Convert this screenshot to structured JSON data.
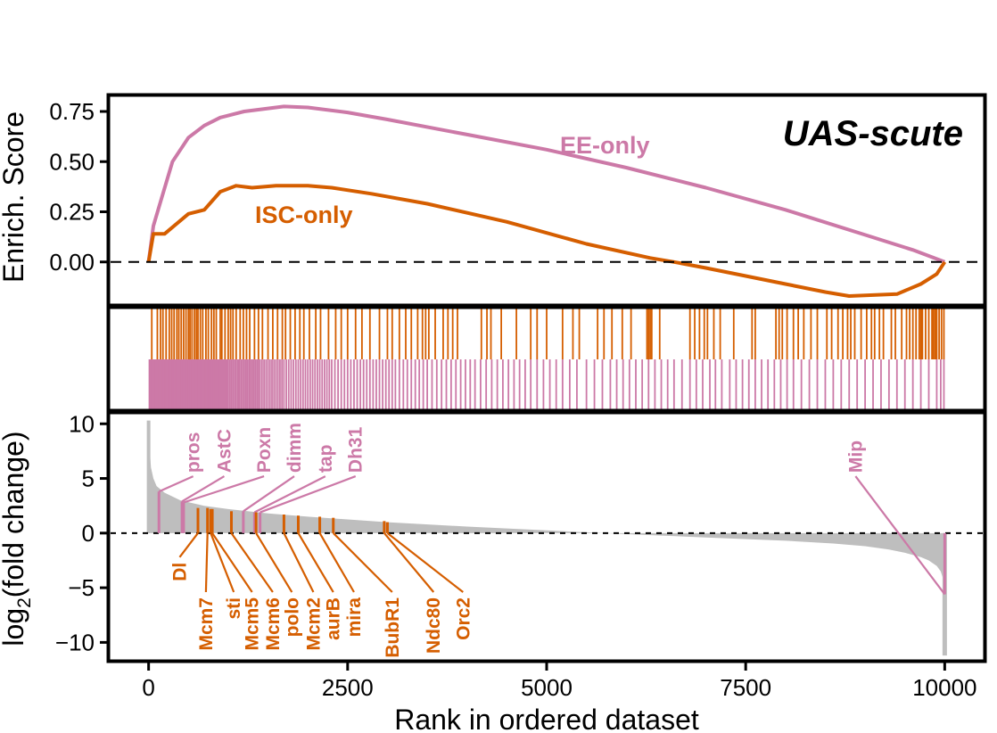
{
  "chart_data": {
    "type": "line",
    "title": "UAS-scute",
    "xlabel": "Rank in ordered dataset",
    "xlim": [
      -500,
      10500
    ],
    "xticks": [
      0,
      2500,
      5000,
      7500,
      10000
    ],
    "colors": {
      "EE-only": "#CC79A7",
      "ISC-only": "#D55E00",
      "fill": "#BEBEBE"
    },
    "enrichment": {
      "ylabel": "Enrich. Score",
      "ylim": [
        -0.21,
        0.83
      ],
      "yticks": [
        "0.75",
        "0.50",
        "0.25",
        "0.00"
      ],
      "yticks_values": [
        0.75,
        0.5,
        0.25,
        0.0
      ],
      "series": [
        {
          "name": "EE-only",
          "x": [
            0,
            60,
            150,
            300,
            500,
            700,
            900,
            1200,
            1500,
            1700,
            2000,
            2500,
            3000,
            4000,
            5000,
            6000,
            7000,
            8000,
            9000,
            9600,
            10000
          ],
          "y": [
            0.0,
            0.18,
            0.3,
            0.5,
            0.62,
            0.68,
            0.72,
            0.75,
            0.765,
            0.775,
            0.77,
            0.745,
            0.71,
            0.635,
            0.56,
            0.47,
            0.37,
            0.26,
            0.135,
            0.06,
            0.0
          ]
        },
        {
          "name": "ISC-only",
          "x": [
            0,
            60,
            200,
            500,
            700,
            900,
            1100,
            1300,
            1600,
            2000,
            2300,
            2800,
            3500,
            4500,
            5500,
            6300,
            6600,
            7000,
            7500,
            8000,
            8500,
            8800,
            9100,
            9400,
            9700,
            9900,
            10000
          ],
          "y": [
            0.0,
            0.14,
            0.14,
            0.24,
            0.26,
            0.35,
            0.38,
            0.37,
            0.38,
            0.38,
            0.37,
            0.34,
            0.29,
            0.2,
            0.09,
            0.02,
            0.0,
            -0.03,
            -0.07,
            -0.11,
            -0.15,
            -0.17,
            -0.165,
            -0.16,
            -0.11,
            -0.06,
            0.0
          ]
        }
      ],
      "series_labels": [
        "EE-only",
        "ISC-only"
      ]
    },
    "rug": {
      "ISC-only": [
        40,
        110,
        150,
        180,
        220,
        260,
        290,
        320,
        355,
        380,
        410,
        440,
        470,
        500,
        520,
        545,
        575,
        600,
        620,
        650,
        680,
        720,
        750,
        790,
        820,
        850,
        900,
        920,
        960,
        1000,
        1030,
        1060,
        1100,
        1150,
        1190,
        1230,
        1270,
        1330,
        1380,
        1430,
        1500,
        1560,
        1620,
        1680,
        1720,
        1780,
        1840,
        1900,
        1950,
        2020,
        2100,
        2160,
        2260,
        2350,
        2420,
        2500,
        2600,
        2680,
        2780,
        2900,
        3000,
        3060,
        3150,
        3230,
        3300,
        3380,
        3440,
        3480,
        3520,
        3600,
        3700,
        3760,
        3820,
        3880,
        4180,
        4250,
        4300,
        4430,
        4620,
        4800,
        4880,
        5000,
        5200,
        5330,
        5410,
        5640,
        5720,
        5820,
        5950,
        6060,
        6260,
        6280,
        6300,
        6320,
        6420,
        6800,
        6860,
        6920,
        6980,
        7020,
        7100,
        7180,
        7350,
        7580,
        7620,
        7880,
        7920,
        7960,
        8020,
        8100,
        8160,
        8230,
        8320,
        8400,
        8520,
        8580,
        8660,
        8720,
        8780,
        8820,
        8870,
        8950,
        9020,
        9080,
        9120,
        9180,
        9230,
        9330,
        9380,
        9460,
        9520,
        9560,
        9600,
        9640,
        9680,
        9700,
        9720,
        9760,
        9800,
        9840,
        9860,
        9880,
        9900,
        9930,
        9960,
        9990
      ],
      "EE-only": [
        10,
        25,
        40,
        55,
        70,
        85,
        100,
        115,
        130,
        145,
        160,
        175,
        190,
        205,
        220,
        235,
        250,
        265,
        280,
        295,
        310,
        325,
        340,
        355,
        370,
        385,
        400,
        415,
        430,
        445,
        460,
        475,
        490,
        505,
        520,
        535,
        550,
        565,
        580,
        595,
        610,
        625,
        640,
        655,
        670,
        685,
        700,
        715,
        730,
        745,
        760,
        775,
        790,
        805,
        820,
        835,
        850,
        865,
        880,
        895,
        910,
        925,
        940,
        955,
        970,
        985,
        1000,
        1020,
        1040,
        1060,
        1080,
        1100,
        1120,
        1140,
        1160,
        1180,
        1200,
        1220,
        1240,
        1260,
        1280,
        1300,
        1320,
        1340,
        1360,
        1380,
        1400,
        1425,
        1450,
        1475,
        1500,
        1525,
        1550,
        1575,
        1600,
        1625,
        1650,
        1675,
        1700,
        1730,
        1760,
        1790,
        1820,
        1850,
        1880,
        1910,
        1940,
        1970,
        2000,
        2030,
        2060,
        2090,
        2120,
        2150,
        2180,
        2210,
        2240,
        2270,
        2300,
        2340,
        2380,
        2420,
        2460,
        2500,
        2540,
        2580,
        2620,
        2660,
        2700,
        2740,
        2780,
        2820,
        2860,
        2900,
        2940,
        2980,
        3020,
        3060,
        3100,
        3150,
        3200,
        3250,
        3300,
        3350,
        3400,
        3450,
        3500,
        3560,
        3620,
        3680,
        3740,
        3800,
        3860,
        3920,
        3980,
        4040,
        4100,
        4170,
        4240,
        4310,
        4380,
        4450,
        4520,
        4590,
        4660,
        4730,
        4800,
        4880,
        4960,
        5040,
        5120,
        5200,
        5290,
        5380,
        5500,
        5600,
        5700,
        5800,
        5880,
        5960,
        6040,
        6120,
        6200,
        6280,
        6360,
        6440,
        6520,
        6600,
        6700,
        6800,
        6880,
        6960,
        7050,
        7120,
        7200,
        7300,
        7380,
        7460,
        7540,
        7620,
        7700,
        7780,
        7860,
        7940,
        8020,
        8100,
        8200,
        8300,
        8400,
        8500,
        8600,
        8700,
        8800,
        8900,
        9000,
        9100,
        9200,
        9300,
        9400,
        9500,
        9600,
        9700,
        9800,
        9900,
        9950,
        9990
      ]
    },
    "fold_change": {
      "ylabel_main": "log",
      "ylabel_sub": "2",
      "ylabel_rest": "(fold change)",
      "ylim": [
        -11.6,
        11
      ],
      "yticks": [
        "10",
        "5",
        "0",
        "−5",
        "−10"
      ],
      "yticks_values": [
        10,
        5,
        0,
        -5,
        -10
      ],
      "curve_x": [
        0,
        10,
        30,
        60,
        100,
        200,
        400,
        700,
        1000,
        1500,
        2000,
        3000,
        4000,
        5000,
        6000,
        7000,
        8000,
        8600,
        9000,
        9300,
        9500,
        9700,
        9800,
        9900,
        9950,
        9980,
        10000
      ],
      "curve_y": [
        10.3,
        8.0,
        6.0,
        5.0,
        4.3,
        3.7,
        3.0,
        2.5,
        2.2,
        1.8,
        1.5,
        1.0,
        0.6,
        0.25,
        -0.1,
        -0.4,
        -0.7,
        -0.95,
        -1.2,
        -1.5,
        -1.8,
        -2.2,
        -2.5,
        -3.0,
        -3.5,
        -4.2,
        -11.2
      ],
      "genes": [
        {
          "name": "pros",
          "group": "EE-only",
          "rank": 130,
          "value": 3.8,
          "label_x": 560,
          "label_y": 5.2
        },
        {
          "name": "AstC",
          "group": "EE-only",
          "rank": 420,
          "value": 2.9,
          "label_x": 950,
          "label_y": 5.2
        },
        {
          "name": "Poxn",
          "group": "EE-only",
          "rank": 440,
          "value": 2.8,
          "label_x": 1450,
          "label_y": 5.2
        },
        {
          "name": "dimm",
          "group": "EE-only",
          "rank": 1190,
          "value": 2.0,
          "label_x": 1830,
          "label_y": 5.2
        },
        {
          "name": "tap",
          "group": "EE-only",
          "rank": 1330,
          "value": 1.9,
          "label_x": 2220,
          "label_y": 5.2
        },
        {
          "name": "Dh31",
          "group": "EE-only",
          "rank": 1400,
          "value": 1.9,
          "label_x": 2600,
          "label_y": 5.2
        },
        {
          "name": "Mip",
          "group": "EE-only",
          "rank": 10000,
          "value": -5.6,
          "label_x": 8880,
          "label_y": 5.2
        },
        {
          "name": "Dl",
          "group": "ISC-only",
          "rank": 620,
          "value": 2.3,
          "label_x": 390,
          "label_y": -2.2
        },
        {
          "name": "Mcm7",
          "group": "ISC-only",
          "rank": 740,
          "value": 2.3,
          "label_x": 720,
          "label_y": -5.4
        },
        {
          "name": "sti",
          "group": "ISC-only",
          "rank": 780,
          "value": 2.2,
          "label_x": 1070,
          "label_y": -5.4
        },
        {
          "name": "Mcm5",
          "group": "ISC-only",
          "rank": 800,
          "value": 2.2,
          "label_x": 1300,
          "label_y": -5.4
        },
        {
          "name": "Mcm6",
          "group": "ISC-only",
          "rank": 1040,
          "value": 2.0,
          "label_x": 1560,
          "label_y": -5.4
        },
        {
          "name": "polo",
          "group": "ISC-only",
          "rank": 1350,
          "value": 1.9,
          "label_x": 1800,
          "label_y": -5.4
        },
        {
          "name": "Mcm2",
          "group": "ISC-only",
          "rank": 1700,
          "value": 1.7,
          "label_x": 2070,
          "label_y": -5.4
        },
        {
          "name": "aurB",
          "group": "ISC-only",
          "rank": 1880,
          "value": 1.6,
          "label_x": 2320,
          "label_y": -5.4
        },
        {
          "name": "mira",
          "group": "ISC-only",
          "rank": 2150,
          "value": 1.5,
          "label_x": 2580,
          "label_y": -5.4
        },
        {
          "name": "BubR1",
          "group": "ISC-only",
          "rank": 2320,
          "value": 1.4,
          "label_x": 3060,
          "label_y": -5.4
        },
        {
          "name": "Ndc80",
          "group": "ISC-only",
          "rank": 2960,
          "value": 1.1,
          "label_x": 3580,
          "label_y": -5.4
        },
        {
          "name": "Orc2",
          "group": "ISC-only",
          "rank": 3000,
          "value": 1.0,
          "label_x": 3950,
          "label_y": -5.4
        }
      ]
    },
    "grid": false,
    "legend": "inline labels"
  }
}
